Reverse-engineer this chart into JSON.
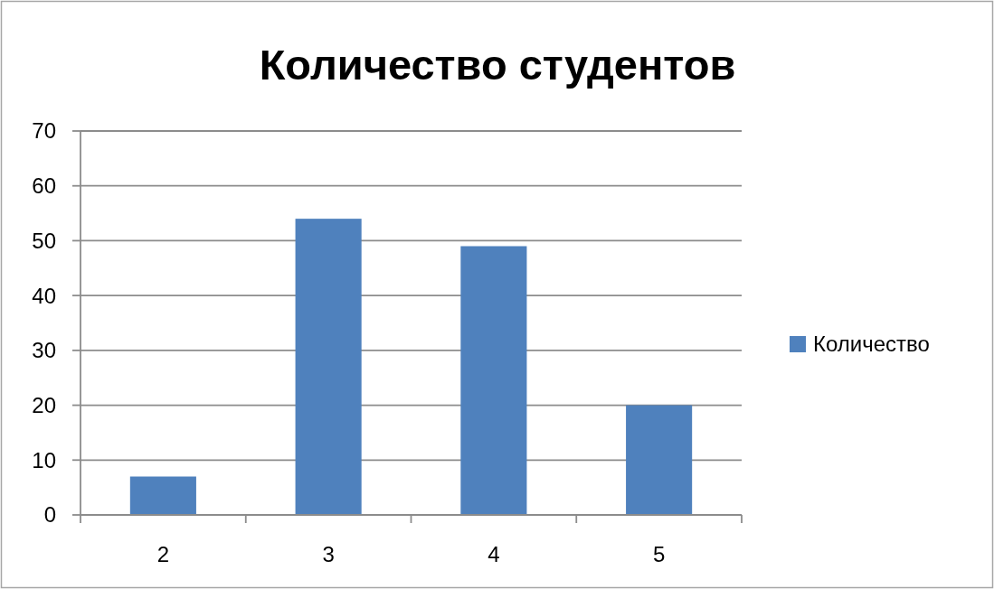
{
  "chart_data": {
    "type": "bar",
    "title": "Количество студентов",
    "categories": [
      "2",
      "3",
      "4",
      "5"
    ],
    "series": [
      {
        "name": "Количество",
        "color": "#4f81bd",
        "values": [
          7,
          54,
          49,
          20
        ]
      }
    ],
    "ylim": [
      0,
      70
    ],
    "yticks": [
      0,
      10,
      20,
      30,
      40,
      50,
      60,
      70
    ],
    "grid": "y",
    "legend": "right"
  }
}
